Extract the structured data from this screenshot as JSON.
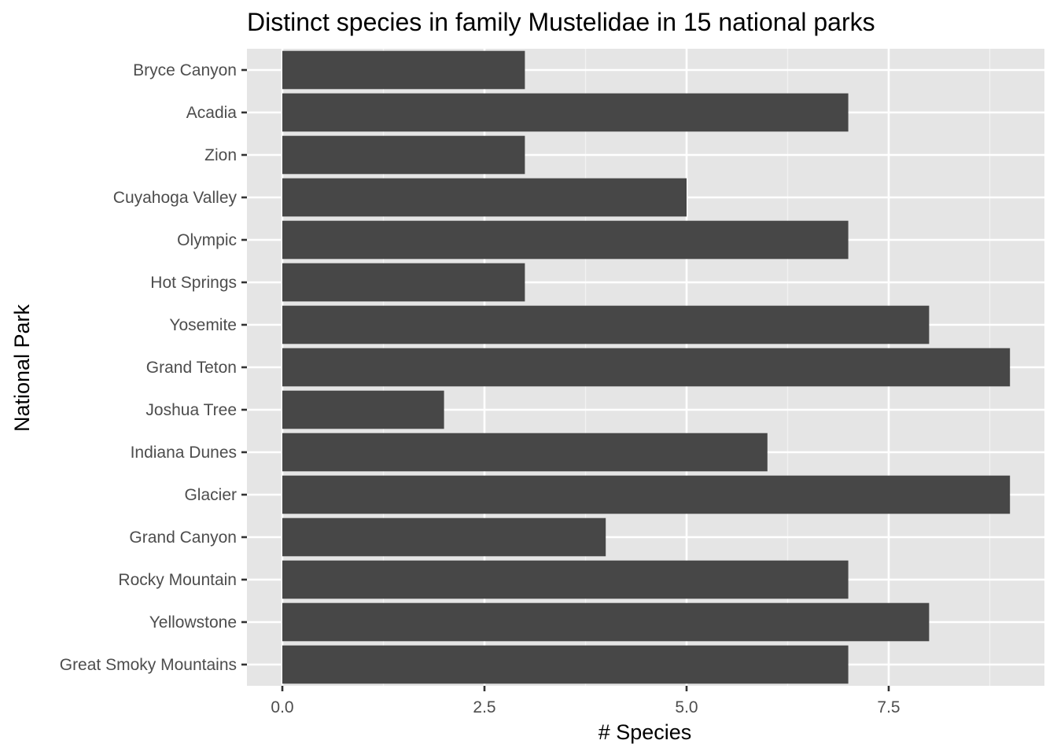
{
  "chart_data": {
    "type": "bar",
    "orientation": "horizontal",
    "title": "Distinct species in family Mustelidae in 15 national parks",
    "xlabel": "# Species",
    "ylabel": "National Park",
    "categories": [
      "Bryce Canyon",
      "Acadia",
      "Zion",
      "Cuyahoga Valley",
      "Olympic",
      "Hot Springs",
      "Yosemite",
      "Grand Teton",
      "Joshua Tree",
      "Indiana Dunes",
      "Glacier",
      "Grand Canyon",
      "Rocky Mountain",
      "Yellowstone",
      "Great Smoky Mountains"
    ],
    "values": [
      3,
      7,
      3,
      5,
      7,
      3,
      8,
      9,
      2,
      6,
      9,
      4,
      7,
      8,
      7
    ],
    "xlim": [
      0,
      9
    ],
    "xticks": [
      "0.0",
      "2.5",
      "5.0",
      "7.5"
    ],
    "xtick_values": [
      0,
      2.5,
      5,
      7.5
    ],
    "grid": true,
    "colors": {
      "bar": "#474747",
      "panel": "#e5e5e5",
      "grid_major": "#ffffff",
      "grid_minor": "#f2f2f2",
      "tick_text": "#4d4d4d",
      "tick_mark": "#333333"
    }
  }
}
